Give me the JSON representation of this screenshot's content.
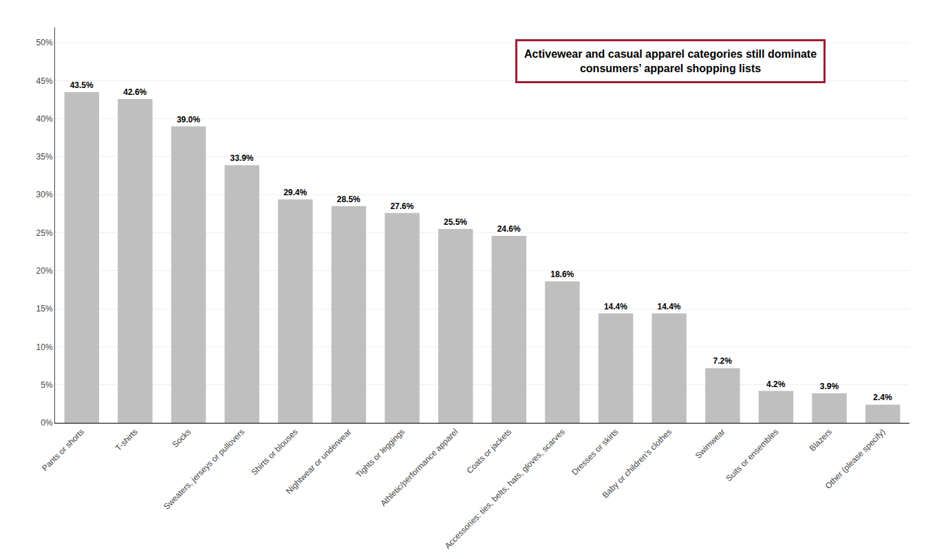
{
  "chart_data": {
    "type": "bar",
    "categories": [
      "Pants or shorts",
      "T-shirts",
      "Socks",
      "Sweaters, jerseys or pullovers",
      "Shirts or blouses",
      "Nightwear or underwear",
      "Tights or leggings",
      "Athletic/performance apparel",
      "Coats or jackets",
      "Accessories: ties, belts, hats, gloves, scarves",
      "Dresses or skirts",
      "Baby or children’s clothes",
      "Swimwear",
      "Suits or ensembles",
      "Blazers",
      "Other (please specify)"
    ],
    "values": [
      43.5,
      42.6,
      39.0,
      33.9,
      29.4,
      28.5,
      27.6,
      25.5,
      24.6,
      18.6,
      14.4,
      14.4,
      7.2,
      4.2,
      3.9,
      2.4
    ],
    "value_labels": [
      "43.5%",
      "42.6%",
      "39.0%",
      "33.9%",
      "29.4%",
      "28.5%",
      "27.6%",
      "25.5%",
      "24.6%",
      "18.6%",
      "14.4%",
      "14.4%",
      "7.2%",
      "4.2%",
      "3.9%",
      "2.4%"
    ],
    "data_labels": true,
    "color": "#BFBFBF",
    "ylim": [
      0,
      52
    ],
    "yticks": [
      {
        "value": 0,
        "label": "0%"
      },
      {
        "value": 5,
        "label": "5%"
      },
      {
        "value": 10,
        "label": "10%"
      },
      {
        "value": 15,
        "label": "15%"
      },
      {
        "value": 20,
        "label": "20%"
      },
      {
        "value": 25,
        "label": "25%"
      },
      {
        "value": 30,
        "label": "30%"
      },
      {
        "value": 35,
        "label": "35%"
      },
      {
        "value": 40,
        "label": "40%"
      },
      {
        "value": 45,
        "label": "45%"
      },
      {
        "value": 50,
        "label": "50%"
      }
    ],
    "grid": true,
    "annotations": [
      "Activewear and casual apparel categories still dominate\nconsumers’ apparel shopping lists"
    ]
  }
}
